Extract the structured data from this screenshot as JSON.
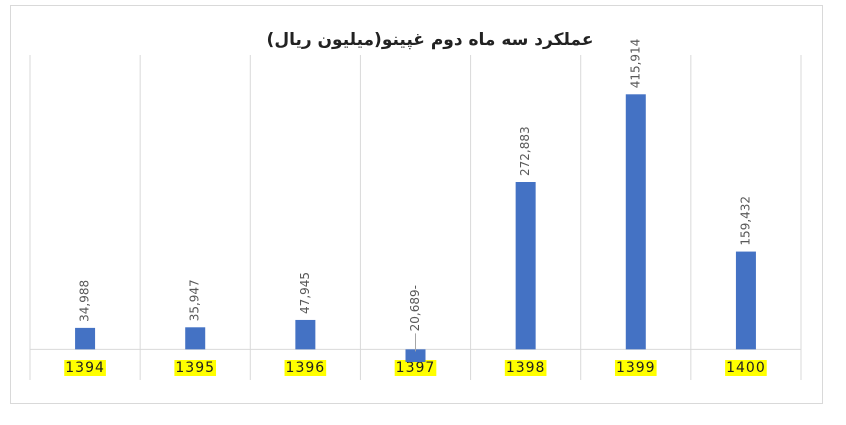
{
  "chart_data": {
    "type": "bar",
    "title": "عملکرد سه ماه دوم غپینو(میلیون ریال)",
    "categories": [
      "1394",
      "1395",
      "1396",
      "1397",
      "1398",
      "1399",
      "1400"
    ],
    "values": [
      34988,
      35947,
      47945,
      -20689,
      272883,
      415914,
      159432
    ],
    "value_labels": [
      "34,988",
      "35,947",
      "47,945",
      "20,689-",
      "272,883",
      "415,914",
      "159,432"
    ],
    "color": "#4472c4",
    "category_highlight": "#ffff00",
    "ylim": [
      -50000,
      480000
    ],
    "grid": true
  }
}
